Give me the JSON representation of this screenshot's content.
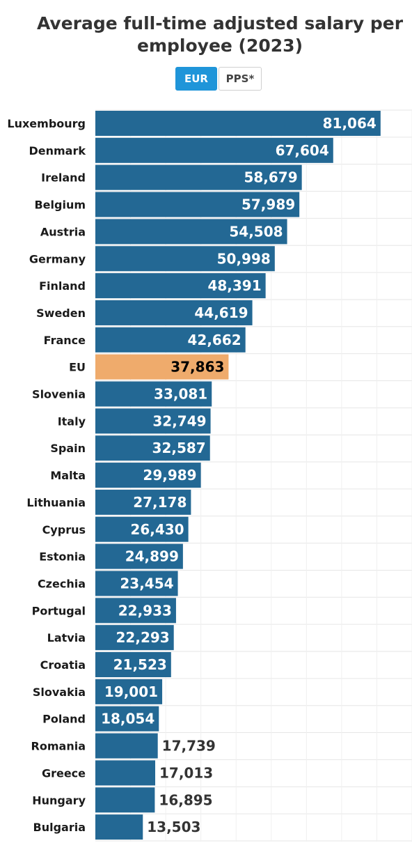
{
  "title": "Average full-time adjusted salary per employee (2023)",
  "toggle": {
    "options": [
      "EUR",
      "PPS*"
    ],
    "selected": "EUR"
  },
  "colors": {
    "bar": "#236894",
    "highlight": "#efab6c",
    "grid": "#e6e6e6",
    "value_inside": "#ffffff",
    "value_highlight": "#000000",
    "value_outside": "#333333"
  },
  "chart_data": {
    "type": "bar",
    "orientation": "horizontal",
    "title": "Average full-time adjusted salary per employee (2023)",
    "categories": [
      "Luxembourg",
      "Denmark",
      "Ireland",
      "Belgium",
      "Austria",
      "Germany",
      "Finland",
      "Sweden",
      "France",
      "EU",
      "Slovenia",
      "Italy",
      "Spain",
      "Malta",
      "Lithuania",
      "Cyprus",
      "Estonia",
      "Czechia",
      "Portugal",
      "Latvia",
      "Croatia",
      "Slovakia",
      "Poland",
      "Romania",
      "Greece",
      "Hungary",
      "Bulgaria"
    ],
    "values": [
      81064,
      67604,
      58679,
      57989,
      54508,
      50998,
      48391,
      44619,
      42662,
      37863,
      33081,
      32749,
      32587,
      29989,
      27178,
      26430,
      24899,
      23454,
      22933,
      22293,
      21523,
      19001,
      18054,
      17739,
      17013,
      16895,
      13503
    ],
    "value_labels": [
      "81,064",
      "67,604",
      "58,679",
      "57,989",
      "54,508",
      "50,998",
      "48,391",
      "44,619",
      "42,662",
      "37,863",
      "33,081",
      "32,749",
      "32,587",
      "29,989",
      "27,178",
      "26,430",
      "24,899",
      "23,454",
      "22,933",
      "22,293",
      "21,523",
      "19,001",
      "18,054",
      "17,739",
      "17,013",
      "16,895",
      "13,503"
    ],
    "highlight": "EU",
    "xlim": [
      0,
      90000
    ],
    "grid": true,
    "legend": "none"
  }
}
